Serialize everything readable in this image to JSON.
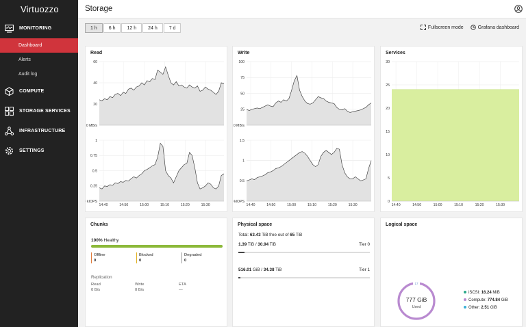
{
  "brand": {
    "name": "Virtuozzo"
  },
  "sidebar": {
    "sections": [
      {
        "label": "MONITORING",
        "icon": "monitor-icon"
      },
      {
        "label": "COMPUTE",
        "icon": "cube-icon"
      },
      {
        "label": "STORAGE SERVICES",
        "icon": "grid-icon"
      },
      {
        "label": "INFRASTRUCTURE",
        "icon": "network-icon"
      },
      {
        "label": "SETTINGS",
        "icon": "gear-icon"
      }
    ],
    "monitoring_items": [
      "Dashboard",
      "Alerts",
      "Audit log"
    ]
  },
  "header": {
    "title": "Storage"
  },
  "toolbar": {
    "ranges": [
      "1 h",
      "6 h",
      "12 h",
      "24 h",
      "7 d"
    ],
    "active": "1 h",
    "fullscreen": "Fullscreen mode",
    "grafana": "Grafana dashboard"
  },
  "x_ticks": [
    "14:40",
    "14:50",
    "15:00",
    "15:10",
    "15:20",
    "15:30"
  ],
  "chart_data": [
    {
      "type": "area",
      "title": "Read",
      "unit": "MB/s",
      "ylim": [
        0,
        60
      ],
      "yticks": [
        "0 MB/s",
        "20",
        "40",
        "60"
      ],
      "values": [
        24,
        23,
        25,
        24,
        27,
        26,
        29,
        30,
        28,
        31,
        30,
        34,
        35,
        33,
        36,
        37,
        40,
        38,
        42,
        41,
        44,
        43,
        52,
        50,
        48,
        55,
        47,
        40,
        38,
        41,
        37,
        38,
        36,
        35,
        38,
        36,
        35,
        37,
        32,
        33,
        36,
        34,
        33,
        31,
        29,
        32,
        40,
        39
      ]
    },
    {
      "type": "area",
      "title": "Read",
      "unit": "kIOPS",
      "ylim": [
        0,
        1
      ],
      "yticks": [
        "0 kIOPS",
        "0.25",
        "0.5",
        "0.75",
        "1"
      ],
      "values": [
        0.22,
        0.2,
        0.25,
        0.24,
        0.27,
        0.26,
        0.3,
        0.29,
        0.32,
        0.31,
        0.34,
        0.33,
        0.37,
        0.4,
        0.38,
        0.42,
        0.45,
        0.5,
        0.52,
        0.55,
        0.58,
        0.6,
        0.72,
        0.95,
        0.9,
        0.5,
        0.42,
        0.38,
        0.3,
        0.4,
        0.5,
        0.55,
        0.6,
        0.62,
        0.8,
        0.75,
        0.55,
        0.3,
        0.2,
        0.22,
        0.25,
        0.3,
        0.28,
        0.22,
        0.2,
        0.25,
        0.42,
        0.45
      ]
    },
    {
      "type": "area",
      "title": "Write",
      "unit": "MB/s",
      "ylim": [
        0,
        100
      ],
      "yticks": [
        "0 MB/s",
        "25",
        "50",
        "75",
        "100"
      ],
      "values": [
        25,
        23,
        25,
        26,
        27,
        26,
        28,
        30,
        32,
        30,
        29,
        35,
        38,
        36,
        40,
        38,
        42,
        55,
        70,
        78,
        55,
        45,
        38,
        34,
        33,
        35,
        40,
        45,
        43,
        42,
        38,
        36,
        35,
        34,
        28,
        25,
        24,
        26,
        22,
        20,
        21,
        22,
        23,
        24,
        26,
        28,
        32,
        35
      ]
    },
    {
      "type": "area",
      "title": "Write",
      "unit": "kIOPS",
      "ylim": [
        0,
        1.5
      ],
      "yticks": [
        "0 kIOPS",
        "0.5",
        "1",
        "1.5"
      ],
      "values": [
        0.5,
        0.52,
        0.55,
        0.53,
        0.58,
        0.6,
        0.62,
        0.65,
        0.7,
        0.72,
        0.75,
        0.8,
        0.82,
        0.85,
        0.9,
        0.95,
        1.0,
        1.05,
        1.1,
        1.15,
        1.2,
        1.22,
        1.18,
        1.1,
        1.0,
        0.9,
        0.85,
        0.9,
        1.1,
        1.2,
        1.25,
        1.2,
        1.15,
        1.2,
        1.3,
        1.28,
        0.9,
        0.7,
        0.6,
        0.55,
        0.55,
        0.6,
        0.55,
        0.5,
        0.52,
        0.55,
        0.8,
        1.0
      ]
    },
    {
      "type": "area",
      "title": "Services",
      "ylim": [
        0,
        30
      ],
      "yticks": [
        "0",
        "5",
        "10",
        "15",
        "20",
        "25",
        "30"
      ],
      "values": [
        24,
        24
      ]
    }
  ],
  "panels": {
    "read": "Read",
    "write": "Write",
    "services": "Services",
    "chunks": "Chunks",
    "physical": "Physical space",
    "logical": "Logical space"
  },
  "chunks": {
    "healthy_pct": "100%",
    "healthy_label": "Healthy",
    "healthy_fraction": 1.0,
    "stats": [
      {
        "label": "Offline",
        "value": "0",
        "color": "#e07a3a"
      },
      {
        "label": "Blocked",
        "value": "0",
        "color": "#e0b020"
      },
      {
        "label": "Degraded",
        "value": "0",
        "color": "#999999"
      }
    ],
    "replication_title": "Replication",
    "replication": [
      {
        "label": "Read",
        "value": "0 B/s"
      },
      {
        "label": "Write",
        "value": "0 B/s"
      },
      {
        "label": "ETA",
        "value": "—"
      }
    ]
  },
  "physical": {
    "total_prefix": "Total:",
    "total_free": "63.43",
    "total_mid": "TiB free out of",
    "total_all": "65",
    "total_unit": "TiB",
    "tiers": [
      {
        "used": "1.39",
        "used_unit": "TiB /",
        "total": "30.94",
        "total_unit": "TiB",
        "tier": "Tier 0",
        "fraction": 0.045
      },
      {
        "used": "516.01",
        "used_unit": "GiB /",
        "total": "34.38",
        "total_unit": "TiB",
        "tier": "Tier 1",
        "fraction": 0.015
      }
    ]
  },
  "logical": {
    "value": "777 GiB",
    "label": "Used",
    "ring_top": "17",
    "legend": [
      {
        "name": "iSCSI:",
        "value": "16.24",
        "unit": "MiB",
        "color": "#2aa88a"
      },
      {
        "name": "Compute:",
        "value": "774.84",
        "unit": "GiB",
        "color": "#b98ad0"
      },
      {
        "name": "Other:",
        "value": "2.51",
        "unit": "GiB",
        "color": "#3ab0d8"
      }
    ]
  }
}
